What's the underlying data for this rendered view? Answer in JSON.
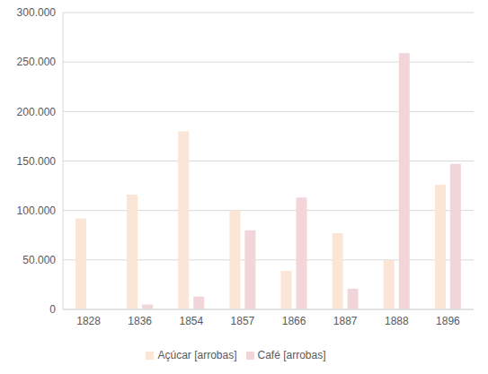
{
  "chart_data": {
    "type": "bar",
    "categories": [
      "1828",
      "1836",
      "1854",
      "1857",
      "1866",
      "1887",
      "1888",
      "1896"
    ],
    "series": [
      {
        "name": "Açúcar [arrobas]",
        "color": "#fbe5d6",
        "values": [
          92000,
          116000,
          180000,
          100000,
          39000,
          77000,
          50000,
          126000
        ]
      },
      {
        "name": "Café [arrobas]",
        "color": "#f2d5d8",
        "values": [
          null,
          5000,
          13000,
          80000,
          113000,
          21000,
          259000,
          147000
        ]
      }
    ],
    "ylim": [
      0,
      300000
    ],
    "yticks": [
      {
        "value": 0,
        "label": "0"
      },
      {
        "value": 50000,
        "label": "50.000"
      },
      {
        "value": 100000,
        "label": "100.000"
      },
      {
        "value": 150000,
        "label": "150.000"
      },
      {
        "value": 200000,
        "label": "200.000"
      },
      {
        "value": 250000,
        "label": "250.000"
      },
      {
        "value": 300000,
        "label": "300.000"
      }
    ],
    "grid": true,
    "legend": "bottom"
  }
}
